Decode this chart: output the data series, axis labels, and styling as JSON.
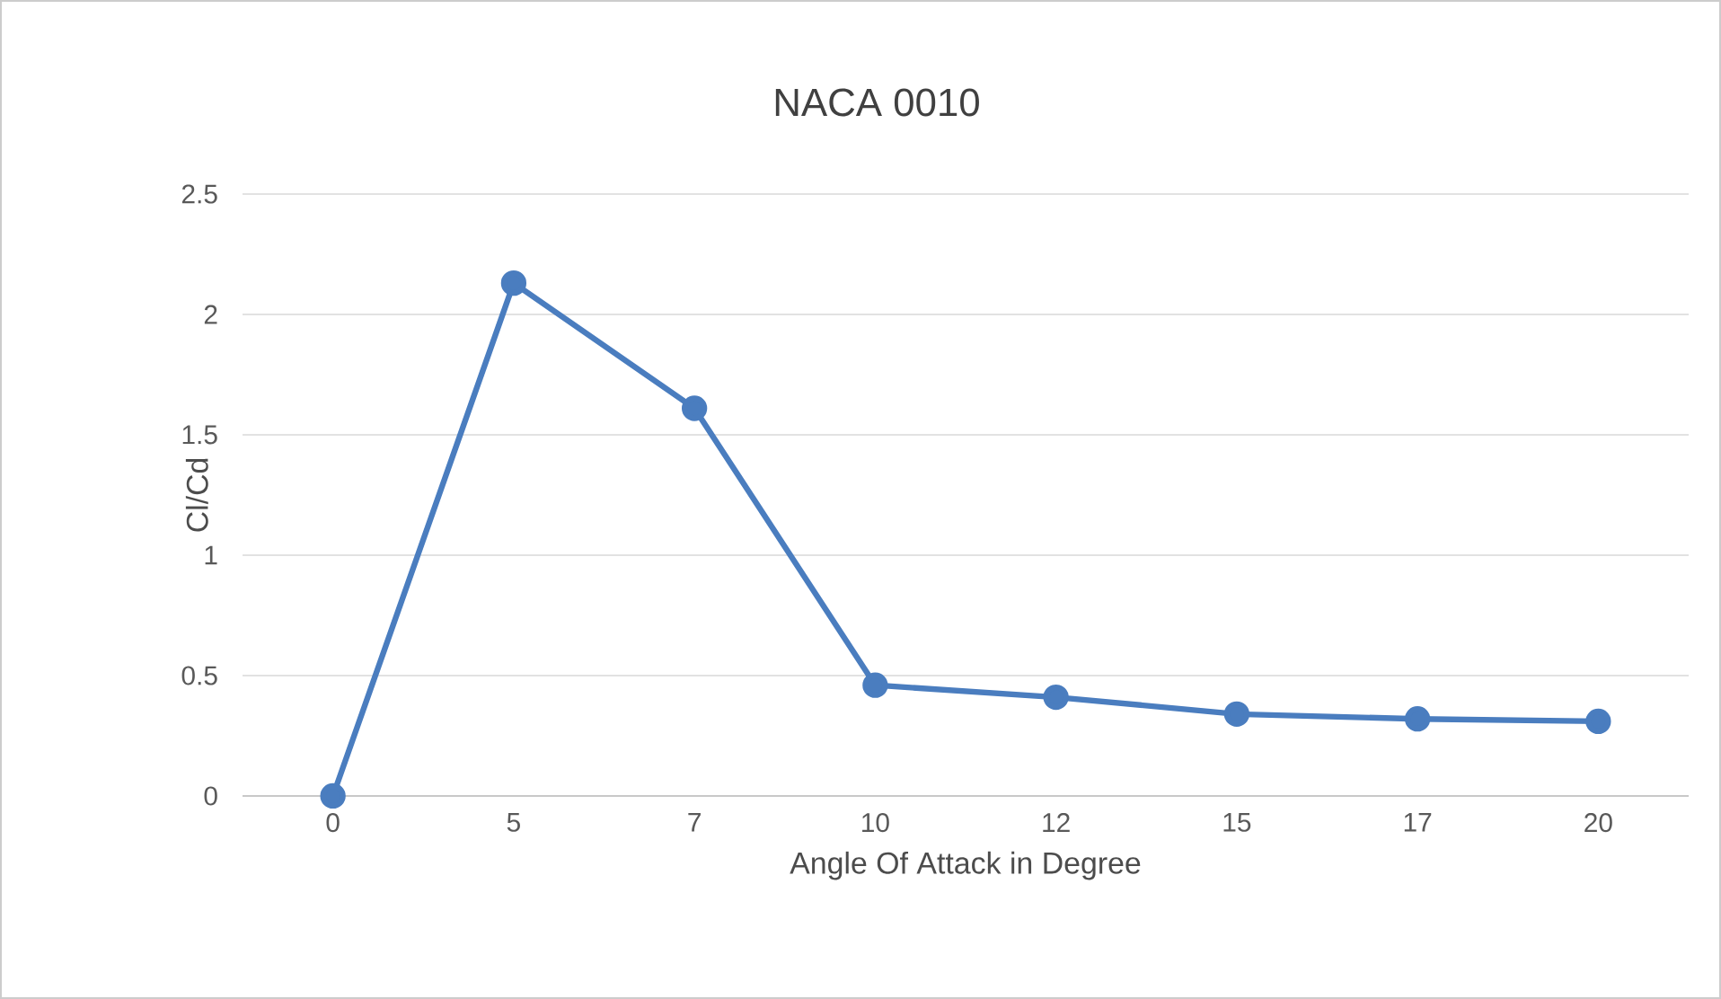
{
  "chart_data": {
    "type": "line",
    "title": "NACA 0010",
    "xlabel": "Angle Of Attack in Degree",
    "ylabel": "Cl/Cd",
    "categories": [
      "0",
      "5",
      "7",
      "10",
      "12",
      "15",
      "17",
      "20"
    ],
    "series": [
      {
        "color": "#4a7dbf",
        "values": [
          0,
          2.13,
          1.61,
          0.46,
          0.41,
          0.34,
          0.32,
          0.31
        ]
      }
    ],
    "ylim": [
      0,
      2.5
    ],
    "yticks": [
      0,
      0.5,
      1,
      1.5,
      2,
      2.5
    ],
    "grid": "y",
    "marker": "circle",
    "line_style": "solid"
  }
}
